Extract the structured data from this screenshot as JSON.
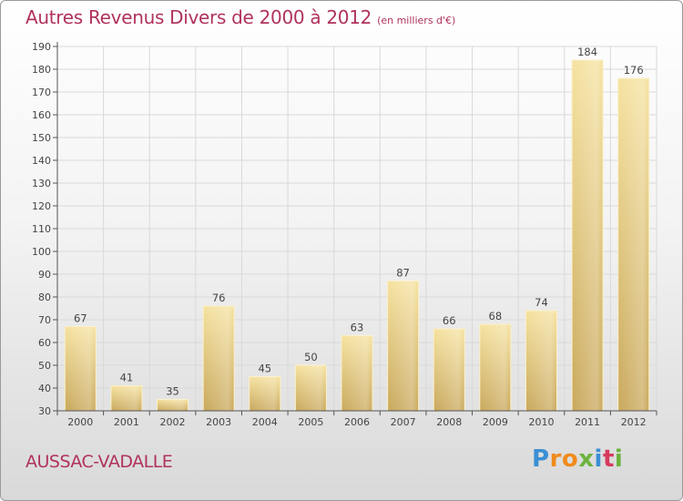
{
  "title": "Autres Revenus Divers de 2000 à 2012",
  "subtitle": "(en milliers d'€)",
  "commune": "AUSSAC-VADALLE",
  "logo": {
    "letters": [
      "P",
      "r",
      "o",
      "x",
      "i",
      "t",
      "i"
    ],
    "colors": [
      "#3b8fd4",
      "#f08a1c",
      "#f08a1c",
      "#6cb33f",
      "#3b8fd4",
      "#d63a5e",
      "#6cb33f"
    ]
  },
  "colors": {
    "bar_light": "#f5e2a0",
    "bar_dark": "#c9a85c",
    "axis": "#555555",
    "grid": "#d9d9d9",
    "title": "#b0325e"
  },
  "chart_data": {
    "type": "bar",
    "categories": [
      "2000",
      "2001",
      "2002",
      "2003",
      "2004",
      "2005",
      "2006",
      "2007",
      "2008",
      "2009",
      "2010",
      "2011",
      "2012"
    ],
    "values": [
      67,
      41,
      35,
      76,
      45,
      50,
      63,
      87,
      66,
      68,
      74,
      184,
      176
    ],
    "title": "Autres Revenus Divers de 2000 à 2012",
    "subtitle": "(en milliers d'€)",
    "xlabel": "",
    "ylabel": "",
    "ylim": [
      30,
      190
    ],
    "yticks": [
      30,
      40,
      50,
      60,
      70,
      80,
      90,
      100,
      110,
      120,
      130,
      140,
      150,
      160,
      170,
      180,
      190
    ],
    "grid": true,
    "legend": "none"
  }
}
